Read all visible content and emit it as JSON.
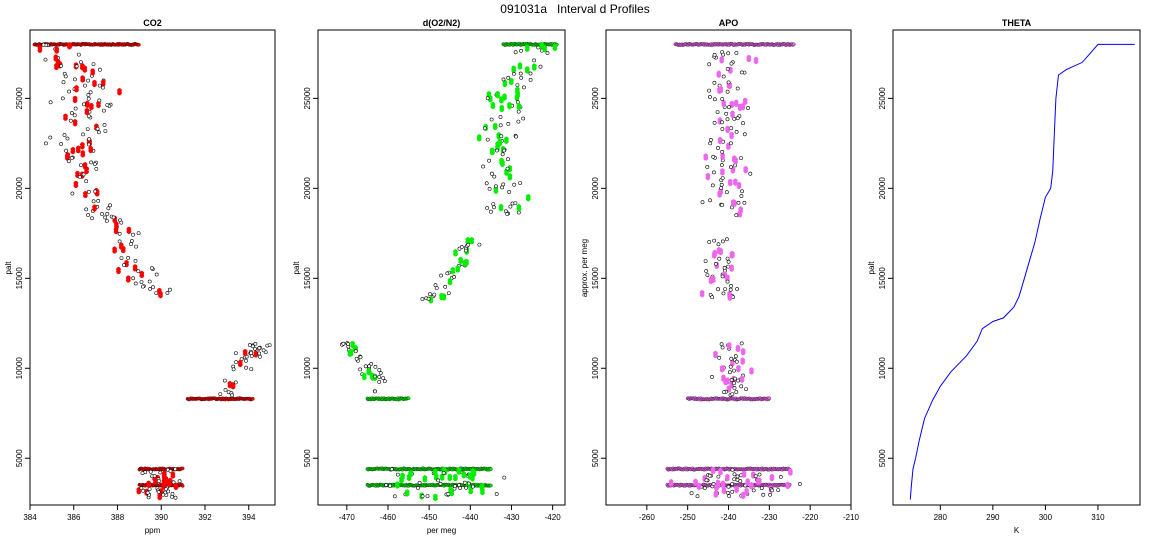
{
  "figure": {
    "title": "091031a   Interval d Profiles"
  },
  "chart_data": [
    {
      "type": "scatter",
      "title": "CO2",
      "xlabel": "ppm",
      "ylabel": "palt",
      "xlim": [
        384,
        395.2
      ],
      "ylim": [
        2400,
        28800
      ],
      "xticks": [
        384,
        386,
        388,
        390,
        392,
        394
      ],
      "yticks": [
        5000,
        10000,
        15000,
        20000,
        25000
      ],
      "color": "#ff0000",
      "series": [
        {
          "segments": [
            {
              "y0": 28000,
              "y1": 25500,
              "x0": 385.3,
              "x1": 386.7,
              "jitter": 1.1,
              "n": 40
            },
            {
              "y0": 25500,
              "y1": 22500,
              "x0": 386.6,
              "x1": 386.2,
              "jitter": 1.3,
              "n": 40
            },
            {
              "y0": 22500,
              "y1": 20000,
              "x0": 386.2,
              "x1": 386.6,
              "jitter": 1.1,
              "n": 30
            },
            {
              "y0": 20000,
              "y1": 17500,
              "x0": 386.6,
              "x1": 388.0,
              "jitter": 0.8,
              "n": 30
            },
            {
              "y0": 17500,
              "y1": 13800,
              "x0": 388.0,
              "x1": 390.0,
              "jitter": 0.8,
              "n": 35
            },
            {
              "y0": 11400,
              "y1": 8400,
              "x0": 394.6,
              "x1": 392.6,
              "jitter": 0.6,
              "n": 40
            },
            {
              "y0": 4400,
              "y1": 2800,
              "x0": 390.0,
              "x1": 390.0,
              "jitter": 0.9,
              "n": 50
            }
          ],
          "bands": [
            {
              "y": 28000,
              "x0": 384.2,
              "x1": 389.0
            },
            {
              "y": 8300,
              "x0": 391.2,
              "x1": 394.2
            },
            {
              "y": 4400,
              "x0": 389.0,
              "x1": 391.0
            },
            {
              "y": 3500,
              "x0": 389.0,
              "x1": 391.0
            }
          ]
        }
      ]
    },
    {
      "type": "scatter",
      "title": "d(O2/N2)",
      "xlabel": "per meg",
      "ylabel": "palt",
      "xlim": [
        -477,
        -417
      ],
      "ylim": [
        2400,
        28800
      ],
      "xticks": [
        -470,
        -460,
        -450,
        -440,
        -430,
        -420
      ],
      "yticks": [
        5000,
        10000,
        15000,
        20000,
        25000
      ],
      "color": "#00ee00",
      "series": [
        {
          "segments": [
            {
              "y0": 28000,
              "y1": 25000,
              "x0": -424,
              "x1": -432,
              "jitter": 5,
              "n": 35
            },
            {
              "y0": 25000,
              "y1": 22000,
              "x0": -432,
              "x1": -433,
              "jitter": 5,
              "n": 35
            },
            {
              "y0": 22000,
              "y1": 18500,
              "x0": -433,
              "x1": -432,
              "jitter": 5,
              "n": 35
            },
            {
              "y0": 17400,
              "y1": 15500,
              "x0": -440,
              "x1": -443,
              "jitter": 3,
              "n": 20
            },
            {
              "y0": 15500,
              "y1": 13800,
              "x0": -444,
              "x1": -450,
              "jitter": 3,
              "n": 20
            },
            {
              "y0": 11400,
              "y1": 8500,
              "x0": -470,
              "x1": -460,
              "jitter": 3,
              "n": 40
            },
            {
              "y0": 4400,
              "y1": 2800,
              "x0": -447,
              "x1": -447,
              "jitter": 15,
              "n": 60
            }
          ],
          "bands": [
            {
              "y": 28000,
              "x0": -432,
              "x1": -419
            },
            {
              "y": 8300,
              "x0": -465,
              "x1": -455
            },
            {
              "y": 4400,
              "x0": -465,
              "x1": -435
            },
            {
              "y": 3500,
              "x0": -465,
              "x1": -435
            }
          ]
        }
      ]
    },
    {
      "type": "scatter",
      "title": "APO",
      "xlabel": "",
      "ylabel": "approx. per meg",
      "xlim": [
        -270,
        -210
      ],
      "ylim": [
        2400,
        28800
      ],
      "xticks": [
        -260,
        -250,
        -240,
        -230,
        -220,
        -210
      ],
      "yticks": [
        5000,
        10000,
        15000,
        20000,
        25000
      ],
      "color": "#ee66ee",
      "series": [
        {
          "segments": [
            {
              "y0": 27600,
              "y1": 18500,
              "x0": -240,
              "x1": -240,
              "jitter": 5,
              "n": 110
            },
            {
              "y0": 17400,
              "y1": 13800,
              "x0": -242,
              "x1": -241,
              "jitter": 5,
              "n": 45
            },
            {
              "y0": 11400,
              "y1": 8500,
              "x0": -239,
              "x1": -238,
              "jitter": 5,
              "n": 45
            },
            {
              "y0": 4400,
              "y1": 2800,
              "x0": -238,
              "x1": -238,
              "jitter": 14,
              "n": 70
            }
          ],
          "bands": [
            {
              "y": 28000,
              "x0": -253,
              "x1": -224
            },
            {
              "y": 8300,
              "x0": -250,
              "x1": -230
            },
            {
              "y": 4400,
              "x0": -255,
              "x1": -225
            },
            {
              "y": 3500,
              "x0": -255,
              "x1": -225
            }
          ]
        }
      ]
    },
    {
      "type": "line",
      "title": "THETA",
      "xlabel": "K",
      "ylabel": "palt",
      "xlim": [
        271,
        318
      ],
      "ylim": [
        2400,
        28800
      ],
      "xticks": [
        280,
        290,
        300,
        310
      ],
      "yticks": [
        5000,
        10000,
        15000,
        20000,
        25000
      ],
      "color": "#0000ff",
      "series": [
        {
          "points": [
            [
              274.3,
              2700
            ],
            [
              274.5,
              3500
            ],
            [
              274.8,
              4400
            ],
            [
              275.3,
              5000
            ],
            [
              276.0,
              6000
            ],
            [
              277.0,
              7200
            ],
            [
              278.5,
              8200
            ],
            [
              280.0,
              9000
            ],
            [
              282.0,
              9800
            ],
            [
              285.0,
              10700
            ],
            [
              287.0,
              11500
            ],
            [
              288.0,
              12200
            ],
            [
              290.0,
              12600
            ],
            [
              292.0,
              12800
            ],
            [
              294.0,
              13400
            ],
            [
              295.0,
              14000
            ],
            [
              296.0,
              15000
            ],
            [
              297.0,
              16000
            ],
            [
              298.0,
              17000
            ],
            [
              299.0,
              18300
            ],
            [
              300.0,
              19500
            ],
            [
              301.0,
              20000
            ],
            [
              301.4,
              21000
            ],
            [
              301.7,
              23000
            ],
            [
              302.0,
              25000
            ],
            [
              302.5,
              26300
            ],
            [
              304.0,
              26600
            ],
            [
              307.0,
              27000
            ],
            [
              308.5,
              27500
            ],
            [
              310.0,
              28000
            ],
            [
              317.0,
              28000
            ]
          ]
        }
      ]
    }
  ]
}
